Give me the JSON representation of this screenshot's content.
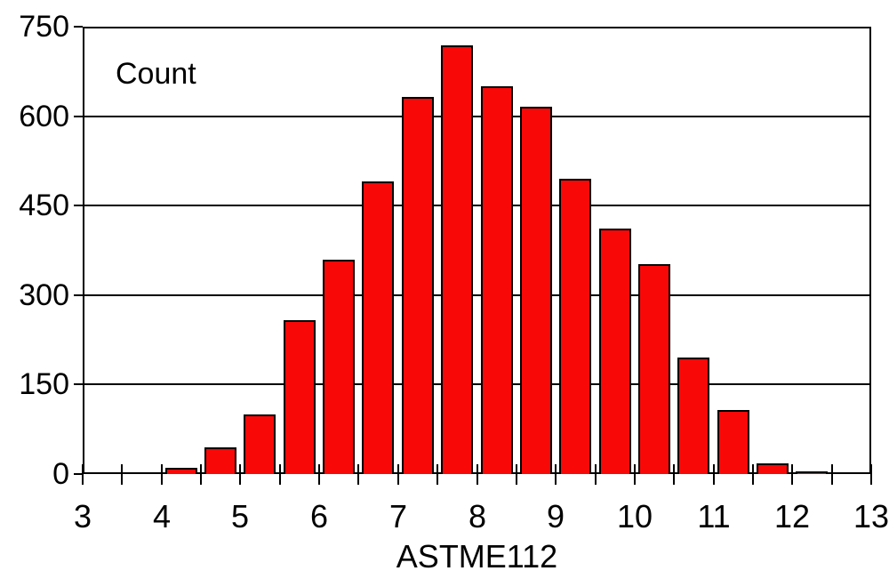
{
  "chart_data": {
    "type": "bar",
    "title": "",
    "inner_label": "Count",
    "xlabel": "ASTME112",
    "ylabel": "",
    "xlim": [
      3,
      13
    ],
    "ylim": [
      0,
      750
    ],
    "yticks": [
      0,
      150,
      300,
      450,
      600,
      750
    ],
    "xtick_labels": [
      3,
      4,
      5,
      6,
      7,
      8,
      9,
      10,
      11,
      12,
      13
    ],
    "xtick_minor_step": 0.5,
    "bin_width": 0.5,
    "grid": "horizontal",
    "legend": "none",
    "bar_color": "#f90808",
    "outline_color": "#000000",
    "background_color": "#ffffff",
    "bins": [
      {
        "from": 4.0,
        "to": 4.5,
        "count": 10
      },
      {
        "from": 4.5,
        "to": 5.0,
        "count": 45
      },
      {
        "from": 5.0,
        "to": 5.5,
        "count": 100
      },
      {
        "from": 5.5,
        "to": 6.0,
        "count": 258
      },
      {
        "from": 6.0,
        "to": 6.5,
        "count": 360
      },
      {
        "from": 6.5,
        "to": 7.0,
        "count": 490
      },
      {
        "from": 7.0,
        "to": 7.5,
        "count": 632
      },
      {
        "from": 7.5,
        "to": 8.0,
        "count": 718
      },
      {
        "from": 8.0,
        "to": 8.5,
        "count": 650
      },
      {
        "from": 8.5,
        "to": 9.0,
        "count": 616
      },
      {
        "from": 9.0,
        "to": 9.5,
        "count": 495
      },
      {
        "from": 9.5,
        "to": 10.0,
        "count": 412
      },
      {
        "from": 10.0,
        "to": 10.5,
        "count": 352
      },
      {
        "from": 10.5,
        "to": 11.0,
        "count": 196
      },
      {
        "from": 11.0,
        "to": 11.5,
        "count": 108
      },
      {
        "from": 11.5,
        "to": 12.0,
        "count": 18
      },
      {
        "from": 12.0,
        "to": 12.5,
        "count": 4
      }
    ]
  }
}
